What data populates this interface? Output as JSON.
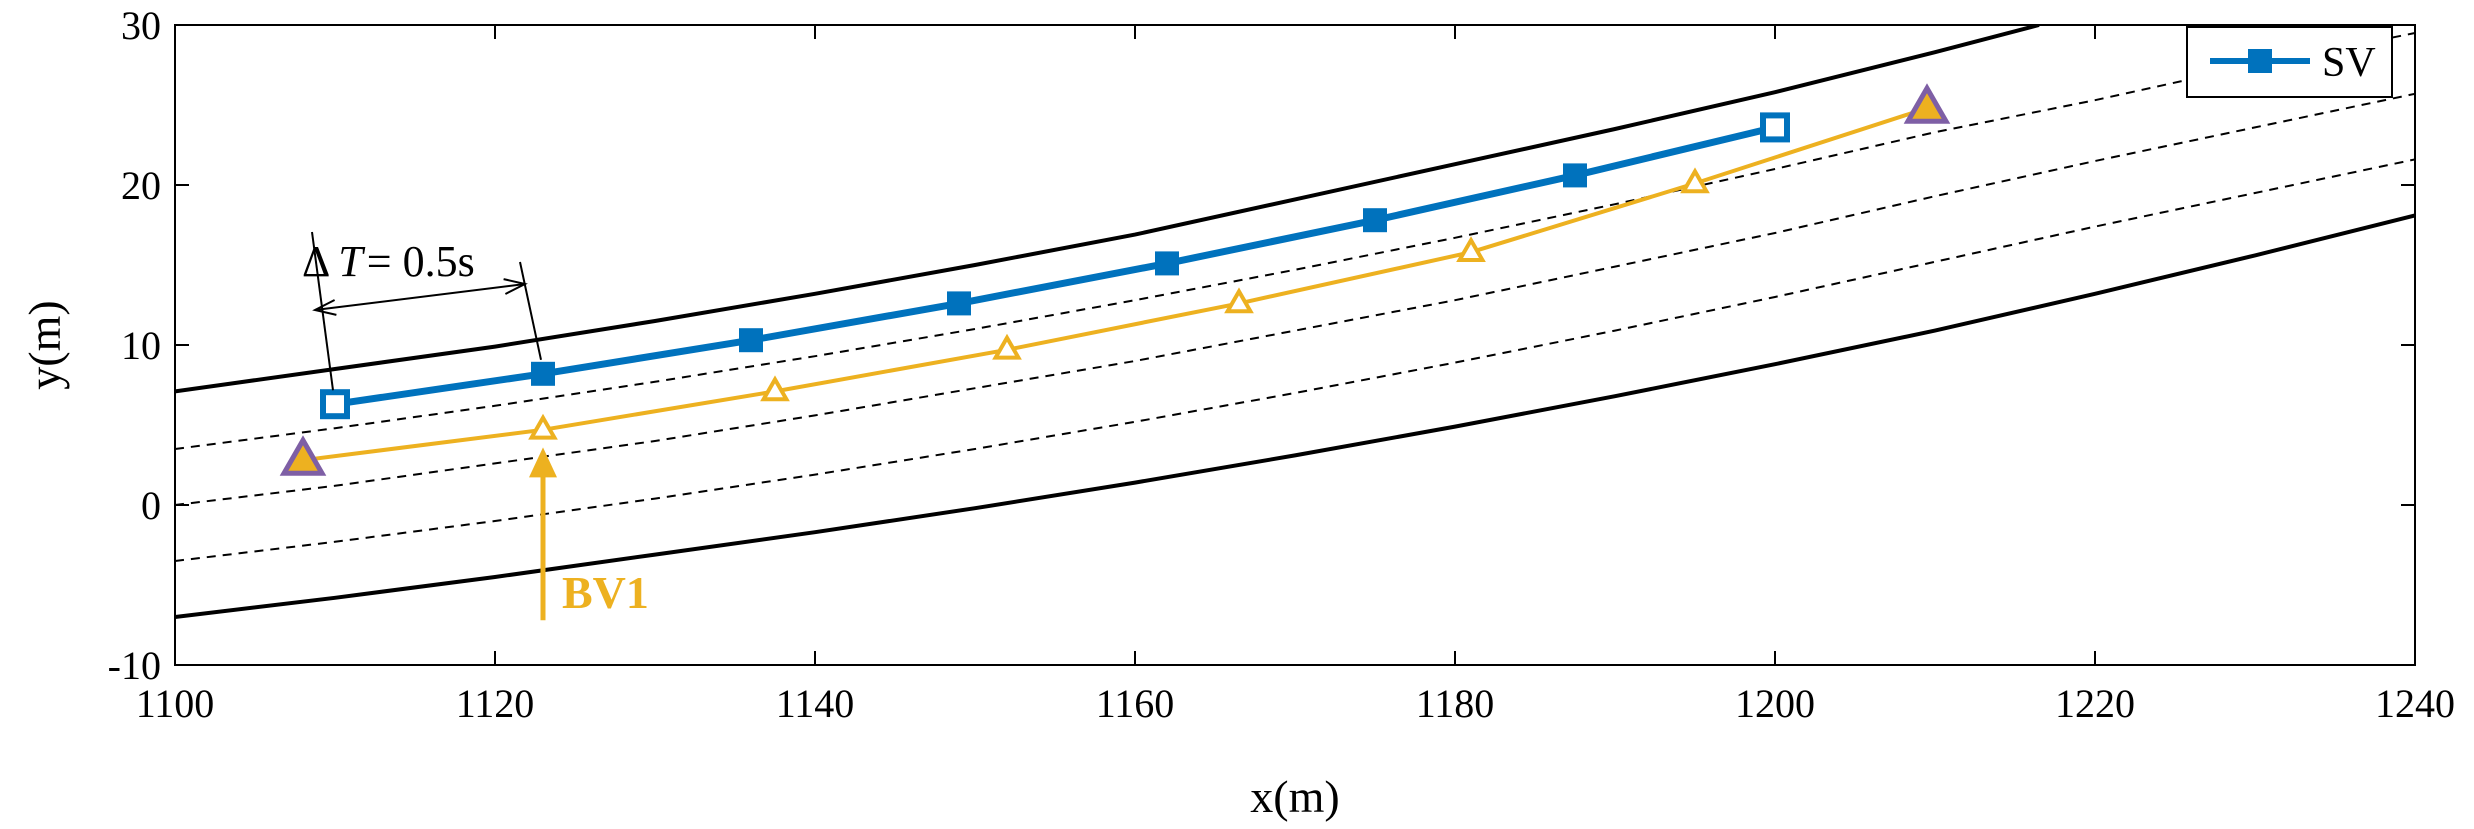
{
  "chart_data": {
    "type": "line",
    "title": "",
    "xlabel": "x(m)",
    "ylabel": "y(m)",
    "xlim": [
      1100,
      1240
    ],
    "ylim": [
      -10,
      30
    ],
    "xticks": [
      1100,
      1120,
      1140,
      1160,
      1180,
      1200,
      1220,
      1240
    ],
    "yticks": [
      -10,
      0,
      10,
      20,
      30
    ],
    "grid": false,
    "legend": {
      "placement": "top-right",
      "entries": [
        "SV"
      ]
    },
    "colors": {
      "sv": "#0072BD",
      "bv": "#EDB120",
      "endpoint": "#7E5FA5",
      "road": "#000000"
    },
    "road_lines": [
      {
        "name": "road-boundary-upper",
        "style": "solid",
        "x": [
          1100,
          1110,
          1120,
          1130,
          1140,
          1150,
          1160,
          1170,
          1180,
          1190,
          1200,
          1210,
          1216.5
        ],
        "y": [
          7.1,
          8.5,
          9.9,
          11.5,
          13.2,
          15.0,
          16.9,
          19.1,
          21.3,
          23.5,
          25.8,
          28.3,
          30.0
        ]
      },
      {
        "name": "lane-line-1",
        "style": "dashed",
        "x": [
          1100,
          1110,
          1120,
          1130,
          1140,
          1150,
          1160,
          1170,
          1180,
          1190,
          1200,
          1210,
          1220,
          1230,
          1240
        ],
        "y": [
          3.5,
          4.8,
          6.2,
          7.7,
          9.3,
          11.0,
          12.8,
          14.7,
          16.7,
          18.8,
          21.0,
          23.3,
          25.3,
          27.5,
          29.5
        ]
      },
      {
        "name": "lane-line-2",
        "style": "dashed",
        "x": [
          1100,
          1110,
          1120,
          1130,
          1140,
          1150,
          1160,
          1170,
          1180,
          1190,
          1200,
          1210,
          1220,
          1230,
          1240
        ],
        "y": [
          0.0,
          1.2,
          2.6,
          4.0,
          5.6,
          7.3,
          9.0,
          10.9,
          12.8,
          14.9,
          17.0,
          19.3,
          21.5,
          23.6,
          25.7
        ]
      },
      {
        "name": "lane-line-3",
        "style": "dashed",
        "x": [
          1100,
          1110,
          1120,
          1130,
          1140,
          1150,
          1160,
          1170,
          1180,
          1190,
          1200,
          1210,
          1220,
          1230,
          1240
        ],
        "y": [
          -3.5,
          -2.3,
          -1.0,
          0.4,
          1.9,
          3.5,
          5.2,
          7.0,
          8.9,
          10.9,
          13.0,
          15.2,
          17.4,
          19.5,
          21.6
        ]
      },
      {
        "name": "road-boundary-lower",
        "style": "solid",
        "x": [
          1100,
          1110,
          1120,
          1130,
          1140,
          1150,
          1160,
          1170,
          1180,
          1190,
          1200,
          1210,
          1220,
          1230,
          1240
        ],
        "y": [
          -7.0,
          -5.8,
          -4.5,
          -3.1,
          -1.7,
          -0.2,
          1.4,
          3.1,
          4.9,
          6.8,
          8.8,
          10.9,
          13.2,
          15.6,
          18.1
        ]
      }
    ],
    "series": [
      {
        "name": "SV",
        "marker": "square",
        "x": [
          1110,
          1123,
          1136,
          1149,
          1162,
          1175,
          1187.5,
          1200
        ],
        "y": [
          6.3,
          8.2,
          10.3,
          12.6,
          15.1,
          17.8,
          20.6,
          23.6
        ]
      },
      {
        "name": "BV1",
        "marker": "triangle",
        "x": [
          1108,
          1123,
          1137.5,
          1152,
          1166.5,
          1181,
          1195,
          1209.5
        ],
        "y": [
          2.8,
          4.7,
          7.1,
          9.7,
          12.6,
          15.8,
          20.1,
          24.8
        ]
      }
    ],
    "annotations": {
      "delta_t": {
        "prefix": "Δ",
        "symbol": "T",
        "value": "= 0.5s",
        "x_from": 1110,
        "x_to": 1123
      },
      "bv_label": {
        "text": "BV1",
        "arrow_x": 1123,
        "arrow_y_from": -7.2,
        "arrow_y_to": 3.6
      }
    }
  }
}
